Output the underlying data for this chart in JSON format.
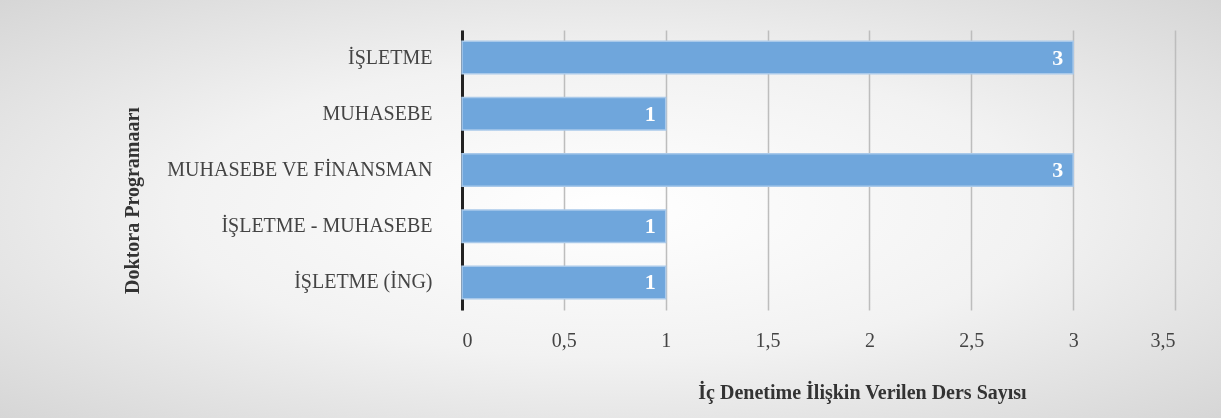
{
  "chart_data": {
    "type": "bar",
    "orientation": "horizontal",
    "xlabel": "İç Denetime İlişkin Verilen Ders Sayısı",
    "ylabel": "Doktora Programaarı",
    "categories": [
      "İŞLETME",
      "MUHASEBE",
      "MUHASEBE VE FİNANSMAN",
      "İŞLETME - MUHASEBE",
      "İŞLETME (İNG)"
    ],
    "values": [
      3,
      1,
      3,
      1,
      1
    ],
    "color": "#6fa6dc",
    "xlim": [
      0,
      3.5
    ],
    "xticks": [
      0,
      {
        "value": 0.5,
        "label": "0,5"
      },
      1,
      {
        "value": 1.5,
        "label": "1,5"
      },
      2,
      {
        "value": 2.5,
        "label": "2,5"
      },
      3,
      {
        "value": 3.5,
        "label": "3,5"
      }
    ],
    "grid": "x",
    "data_labels": true
  }
}
